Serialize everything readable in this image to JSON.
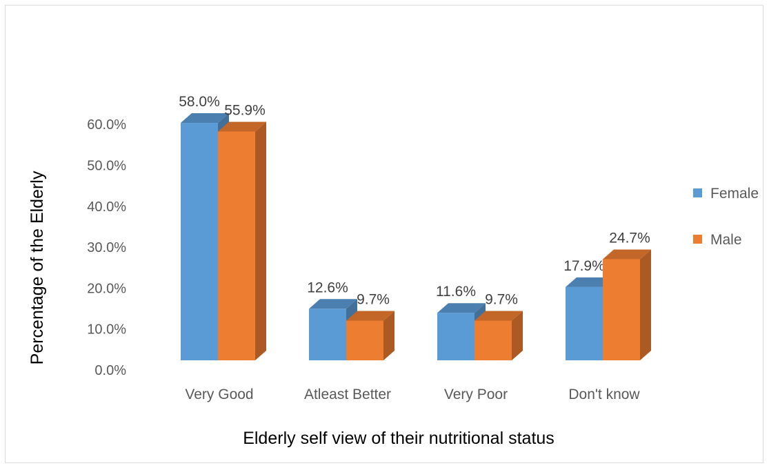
{
  "chart_data": {
    "type": "bar",
    "style": "3d-clustered-column",
    "categories": [
      "Very Good",
      "Atleast Better",
      "Very Poor",
      "Don't know"
    ],
    "series": [
      {
        "name": "Female",
        "values": [
          58.0,
          12.6,
          11.6,
          17.9
        ],
        "labels": [
          "58.0%",
          "12.6%",
          "11.6%",
          "17.9%"
        ],
        "color": "#5b9bd5"
      },
      {
        "name": "Male",
        "values": [
          55.9,
          9.7,
          9.7,
          24.7
        ],
        "labels": [
          "55.9%",
          "9.7%",
          "9.7%",
          "24.7%"
        ],
        "color": "#ed7d31"
      }
    ],
    "yticks": [
      "0.0%",
      "10.0%",
      "20.0%",
      "30.0%",
      "40.0%",
      "50.0%",
      "60.0%"
    ],
    "ylim": [
      0,
      60
    ],
    "xlabel": "Elderly self view of their nutritional status",
    "ylabel": "Percentage of the Elderly",
    "grid": false,
    "legend": "right"
  }
}
